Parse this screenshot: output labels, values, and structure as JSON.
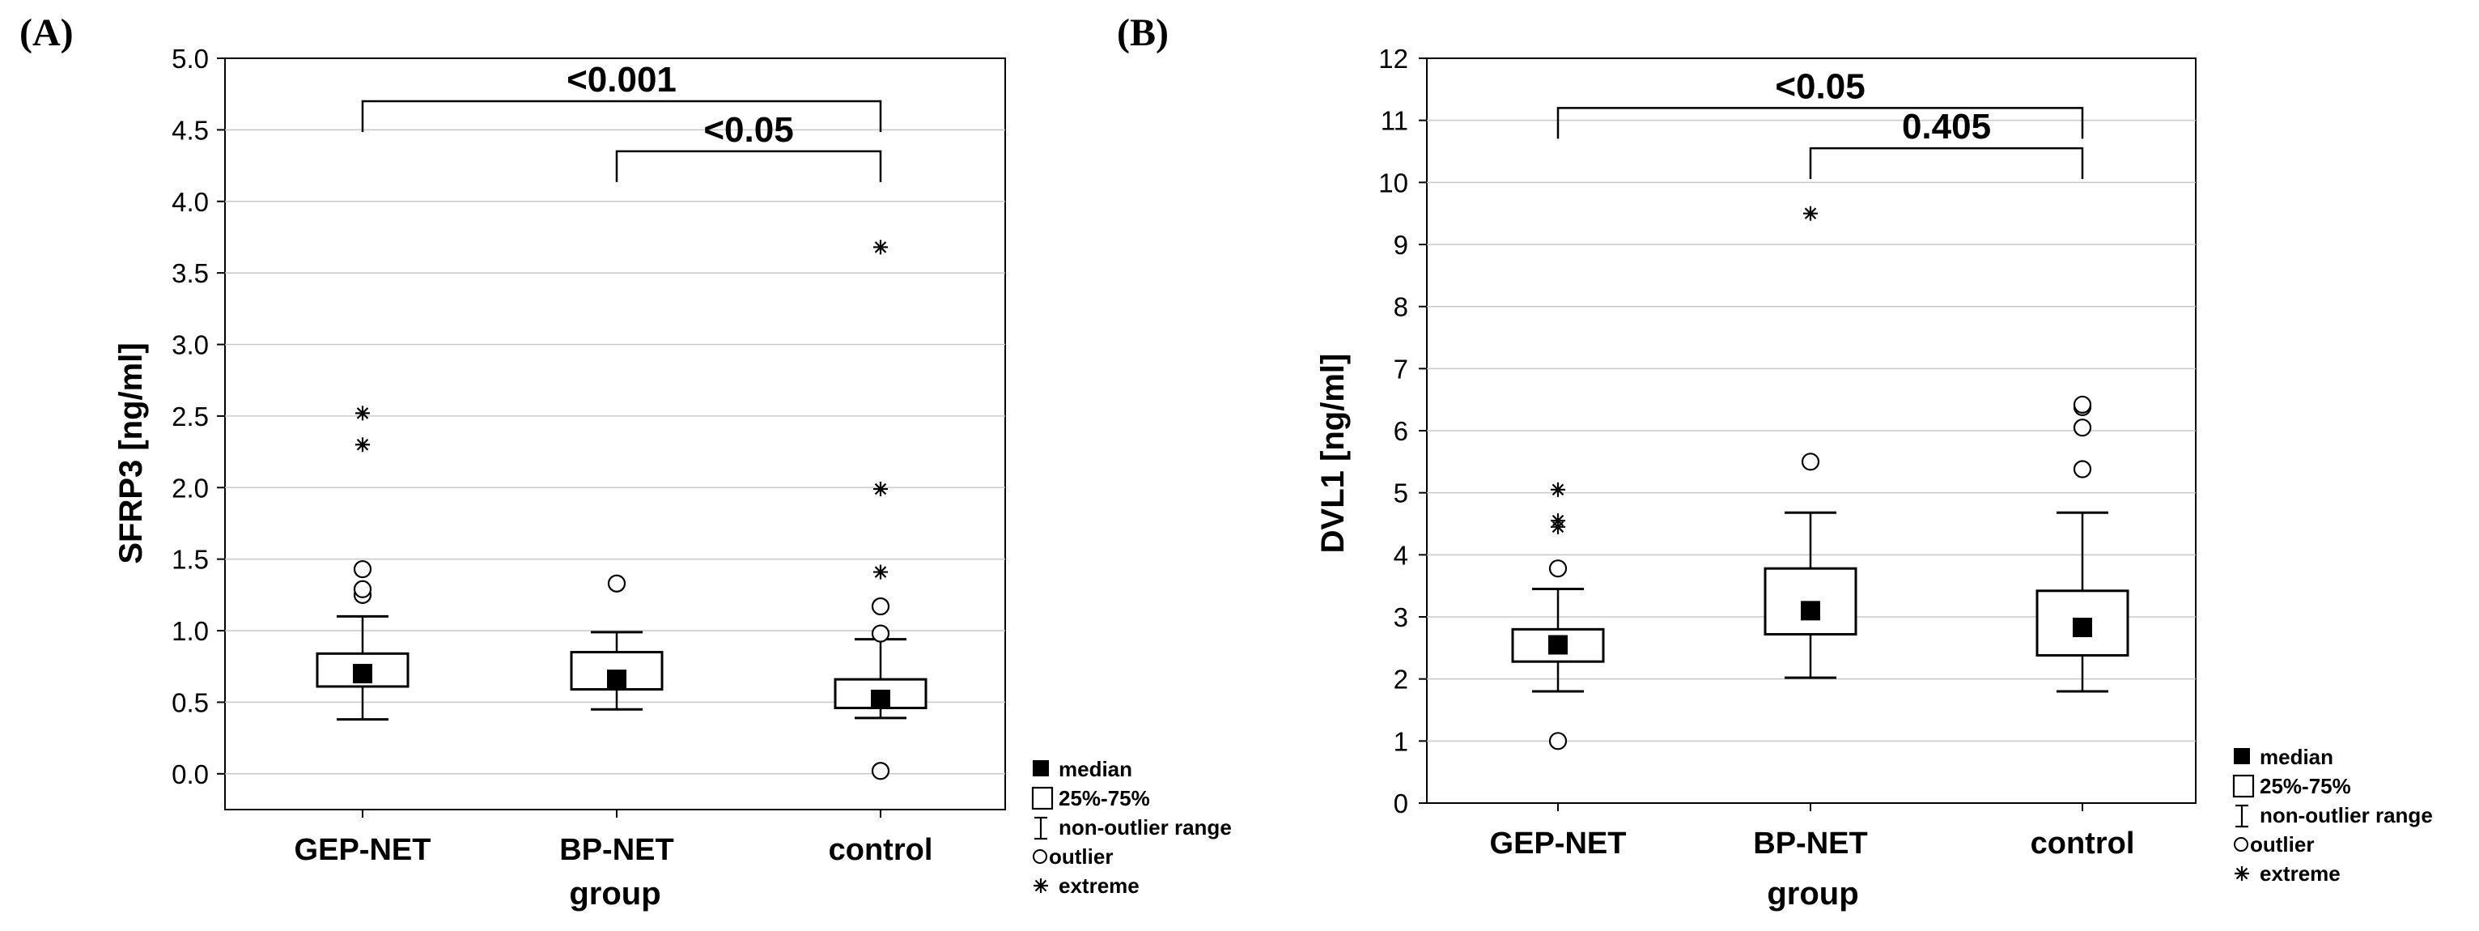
{
  "chart_data": [
    {
      "type": "box",
      "panel_label": "(A)",
      "title": "",
      "ylabel": "SFRP3 [ng/ml]",
      "xlabel": "group",
      "categories": [
        "GEP-NET",
        "BP-NET",
        "control"
      ],
      "ylim": [
        -0.25,
        5.0
      ],
      "yticks": [
        "0.0",
        "0.5",
        "1.0",
        "1.5",
        "2.0",
        "2.5",
        "3.0",
        "3.5",
        "4.0",
        "4.5",
        "5.0"
      ],
      "grid": true,
      "boxes": [
        {
          "category": "GEP-NET",
          "median": 0.7,
          "q1": 0.61,
          "q3": 0.84,
          "whisker_low": 0.38,
          "whisker_high": 1.1,
          "outliers": [
            1.25,
            1.29,
            1.43
          ],
          "extremes": [
            2.3,
            2.52
          ]
        },
        {
          "category": "BP-NET",
          "median": 0.66,
          "q1": 0.59,
          "q3": 0.85,
          "whisker_low": 0.45,
          "whisker_high": 0.99,
          "outliers": [
            1.33
          ],
          "extremes": []
        },
        {
          "category": "control",
          "median": 0.52,
          "q1": 0.46,
          "q3": 0.66,
          "whisker_low": 0.39,
          "whisker_high": 0.94,
          "outliers": [
            0.02,
            0.98,
            1.17
          ],
          "extremes": [
            1.41,
            1.99,
            3.68
          ]
        }
      ],
      "comparisons": [
        {
          "from": "GEP-NET",
          "to": "control",
          "label": "<0.001",
          "y": 4.7
        },
        {
          "from": "BP-NET",
          "to": "control",
          "label": "<0.05",
          "y": 4.35
        }
      ],
      "legend": {
        "position": "bottom-right",
        "items": [
          "median",
          "25%-75%",
          "non-outlier range",
          "outlier",
          "extreme"
        ]
      }
    },
    {
      "type": "box",
      "panel_label": "(B)",
      "title": "",
      "ylabel": "DVL1 [ng/ml]",
      "xlabel": "group",
      "categories": [
        "GEP-NET",
        "BP-NET",
        "control"
      ],
      "ylim": [
        0,
        12
      ],
      "yticks": [
        "0",
        "1",
        "2",
        "3",
        "4",
        "5",
        "6",
        "7",
        "8",
        "9",
        "10",
        "11",
        "12"
      ],
      "grid": true,
      "boxes": [
        {
          "category": "GEP-NET",
          "median": 2.55,
          "q1": 2.28,
          "q3": 2.8,
          "whisker_low": 1.8,
          "whisker_high": 3.45,
          "outliers": [
            1.0,
            3.78
          ],
          "extremes": [
            4.45,
            4.55,
            5.05
          ]
        },
        {
          "category": "BP-NET",
          "median": 3.1,
          "q1": 2.72,
          "q3": 3.78,
          "whisker_low": 2.02,
          "whisker_high": 4.68,
          "outliers": [
            5.5
          ],
          "extremes": [
            9.5
          ]
        },
        {
          "category": "control",
          "median": 2.83,
          "q1": 2.38,
          "q3": 3.42,
          "whisker_low": 1.8,
          "whisker_high": 4.68,
          "outliers": [
            5.38,
            6.05,
            6.38,
            6.42
          ],
          "extremes": []
        }
      ],
      "comparisons": [
        {
          "from": "GEP-NET",
          "to": "control",
          "label": "<0.05",
          "y": 11.2
        },
        {
          "from": "BP-NET",
          "to": "control",
          "label": "0.405",
          "y": 10.55
        }
      ],
      "legend": {
        "position": "bottom-right",
        "items": [
          "median",
          "25%-75%",
          "non-outlier range",
          "outlier",
          "extreme"
        ]
      }
    }
  ]
}
